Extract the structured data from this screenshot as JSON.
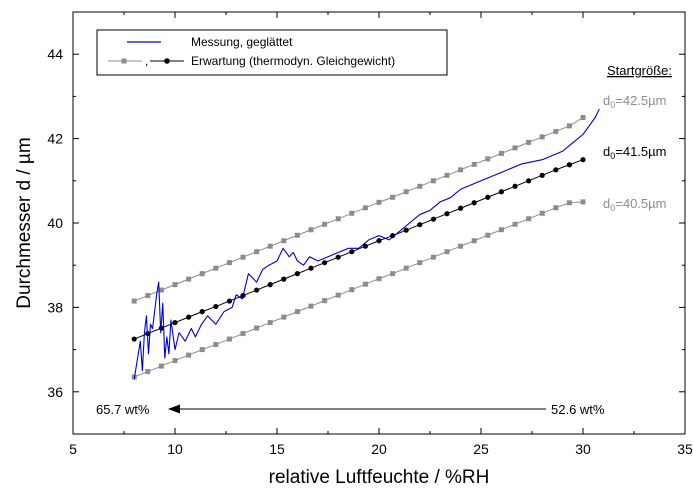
{
  "chart_data": {
    "type": "line",
    "xlabel": "relative Luftfeuchte / %RH",
    "ylabel": "Durchmesser d / µm",
    "xlim": [
      5,
      35
    ],
    "ylim": [
      35,
      45
    ],
    "xticks": [
      5,
      10,
      15,
      20,
      25,
      30,
      35
    ],
    "yticks": [
      36,
      38,
      40,
      42,
      44
    ],
    "grid": false,
    "legend": {
      "placement": "top-left",
      "entries": [
        "Messung, geglättet",
        "Erwartung (thermodyn. Gleichgewicht)"
      ],
      "separator": ","
    },
    "expectation_rh": [
      8,
      8.667,
      9.333,
      10,
      10.667,
      11.333,
      12,
      12.667,
      13.333,
      14,
      14.667,
      15.333,
      16,
      16.667,
      17.333,
      18,
      18.667,
      19.333,
      20,
      20.667,
      21.333,
      22,
      22.667,
      23.333,
      24,
      24.667,
      25.333,
      26,
      26.667,
      27.333,
      28,
      28.667,
      29.333,
      30
    ],
    "series": [
      {
        "name": "Erwartung (thermodyn. Gleichgewicht)",
        "style": "expectation",
        "start_label": {
          "d_text": "d",
          "sub_text": "0",
          "value_text": "=42.5µm"
        },
        "color": "#8c8c8c",
        "marker": "square",
        "values": [
          38.15,
          38.28,
          38.41,
          38.54,
          38.67,
          38.8,
          38.93,
          39.06,
          39.19,
          39.32,
          39.45,
          39.58,
          39.71,
          39.84,
          39.97,
          40.1,
          40.23,
          40.36,
          40.49,
          40.61,
          40.74,
          40.87,
          41.0,
          41.13,
          41.26,
          41.39,
          41.52,
          41.65,
          41.78,
          41.91,
          42.04,
          42.17,
          42.3,
          42.5
        ]
      },
      {
        "name": "Erwartung (thermodyn. Gleichgewicht)",
        "style": "expectation",
        "start_label": {
          "d_text": "d",
          "sub_text": "0",
          "value_text": "=41.5µm"
        },
        "color": "#000000",
        "marker": "circle",
        "values": [
          37.25,
          37.38,
          37.51,
          37.64,
          37.77,
          37.9,
          38.02,
          38.15,
          38.28,
          38.41,
          38.54,
          38.67,
          38.8,
          38.93,
          39.06,
          39.19,
          39.32,
          39.45,
          39.58,
          39.7,
          39.83,
          39.96,
          40.09,
          40.22,
          40.35,
          40.48,
          40.61,
          40.74,
          40.87,
          41.0,
          41.13,
          41.26,
          41.38,
          41.5
        ]
      },
      {
        "name": "Erwartung (thermodyn. Gleichgewicht)",
        "style": "expectation",
        "start_label": {
          "d_text": "d",
          "sub_text": "0",
          "value_text": "=40.5µm"
        },
        "color": "#8c8c8c",
        "marker": "square",
        "values": [
          36.35,
          36.48,
          36.61,
          36.74,
          36.87,
          37.0,
          37.12,
          37.25,
          37.38,
          37.51,
          37.64,
          37.77,
          37.9,
          38.03,
          38.16,
          38.29,
          38.42,
          38.55,
          38.68,
          38.8,
          38.93,
          39.06,
          39.19,
          39.32,
          39.45,
          39.58,
          39.71,
          39.84,
          39.97,
          40.1,
          40.23,
          40.36,
          40.48,
          40.5
        ]
      },
      {
        "name": "Messung, geglättet",
        "style": "measurement",
        "color": "#0000cc",
        "x": [
          8.0,
          8.1,
          8.2,
          8.3,
          8.4,
          8.5,
          8.6,
          8.7,
          8.8,
          8.9,
          9.0,
          9.1,
          9.2,
          9.3,
          9.4,
          9.5,
          9.6,
          9.7,
          9.8,
          10.0,
          10.2,
          10.5,
          10.8,
          11.0,
          11.3,
          11.6,
          12.0,
          12.4,
          12.8,
          13.0,
          13.3,
          13.6,
          14.0,
          14.3,
          14.6,
          15.0,
          15.3,
          15.6,
          15.8,
          16.0,
          16.3,
          16.6,
          17.0,
          17.5,
          18.0,
          18.5,
          19.0,
          19.5,
          20.0,
          20.5,
          21.0,
          21.5,
          22.0,
          22.5,
          23.0,
          23.5,
          24.0,
          25.0,
          26.0,
          27.0,
          28.0,
          29.0,
          29.5,
          30.0,
          30.3,
          30.6,
          30.8
        ],
        "y": [
          36.3,
          36.6,
          36.9,
          37.2,
          36.5,
          37.4,
          37.8,
          36.9,
          37.6,
          37.5,
          37.9,
          38.3,
          38.6,
          37.4,
          38.1,
          36.8,
          37.3,
          36.9,
          37.7,
          37.0,
          37.4,
          37.2,
          37.5,
          37.3,
          37.6,
          37.8,
          37.6,
          37.9,
          38.0,
          38.3,
          38.2,
          38.8,
          38.6,
          38.9,
          39.0,
          39.1,
          39.4,
          39.2,
          39.3,
          39.1,
          39.0,
          39.2,
          39.1,
          39.2,
          39.3,
          39.4,
          39.4,
          39.6,
          39.7,
          39.6,
          39.8,
          40.0,
          40.2,
          40.3,
          40.5,
          40.6,
          40.8,
          41.0,
          41.2,
          41.4,
          41.5,
          41.7,
          41.9,
          42.1,
          42.3,
          42.5,
          42.7
        ]
      }
    ],
    "annotations": {
      "startsize_header": "Startgröße:",
      "arrow_left_text": "65.7 wt%",
      "arrow_right_text": "52.6 wt%"
    },
    "colors": {
      "measurement": "#0000cc",
      "expectation_black": "#000000",
      "expectation_gray": "#8c8c8c"
    }
  }
}
